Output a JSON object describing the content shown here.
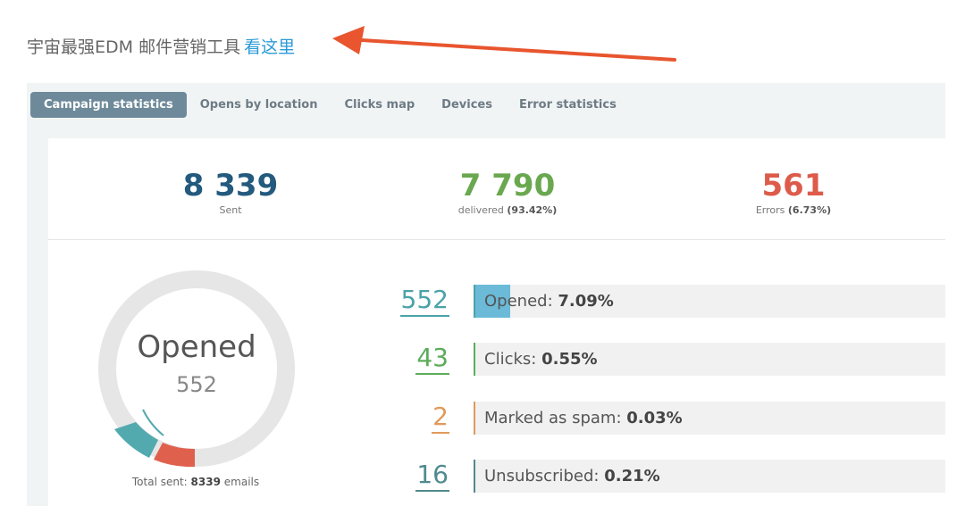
{
  "promo": {
    "text": "宇宙最强EDM 邮件营销工具",
    "link": "看这里",
    "arrow_color": "#e8552e"
  },
  "tabs": [
    {
      "label": "Campaign statistics",
      "active": true
    },
    {
      "label": "Opens by location"
    },
    {
      "label": "Clicks map"
    },
    {
      "label": "Devices"
    },
    {
      "label": "Error statistics"
    }
  ],
  "summary": {
    "sent": {
      "value": "8 339",
      "label": "Sent",
      "color": "#235a7e"
    },
    "delivered": {
      "value": "7 790",
      "label": "delivered",
      "pct": "(93.42%)",
      "color": "#6aa84f"
    },
    "errors": {
      "value": "561",
      "label": "Errors",
      "pct": "(6.73%)",
      "color": "#dd5b4b"
    }
  },
  "donut": {
    "title": "Opened",
    "value": "552",
    "total_label": "Total sent:",
    "total_value": "8339",
    "total_unit": "emails"
  },
  "metrics": [
    {
      "count": "552",
      "label": "Opened:",
      "pct": "7.09%",
      "percent": 7.09,
      "color": "#4aa3a8",
      "fill": "#6bbad8"
    },
    {
      "count": "43",
      "label": "Clicks:",
      "pct": "0.55%",
      "percent": 0.55,
      "color": "#5cac5c"
    },
    {
      "count": "2",
      "label": "Marked as spam:",
      "pct": "0.03%",
      "percent": 0.03,
      "color": "#e09a5c"
    },
    {
      "count": "16",
      "label": "Unsubscribed:",
      "pct": "0.21%",
      "percent": 0.21,
      "color": "#4f8a8e"
    }
  ]
}
